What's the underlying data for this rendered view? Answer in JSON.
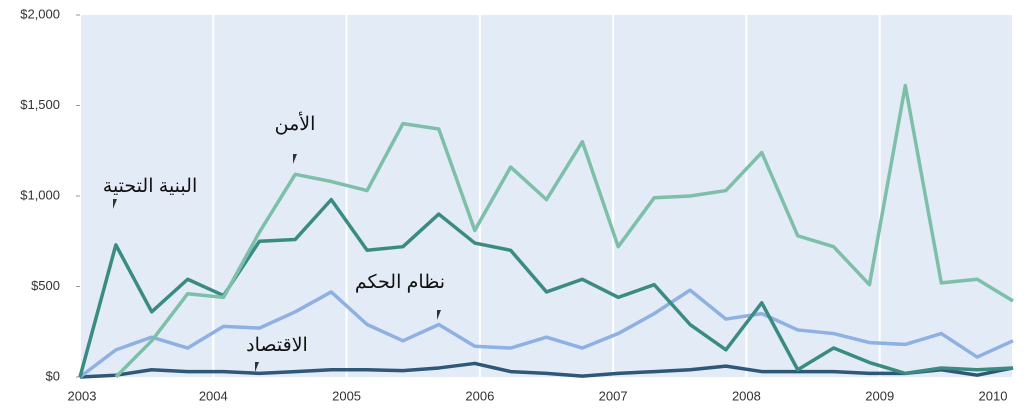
{
  "chart_data": {
    "type": "line",
    "x": [
      2003,
      2003.269,
      2003.538,
      2003.808,
      2004.077,
      2004.346,
      2004.615,
      2004.885,
      2005.154,
      2005.423,
      2005.692,
      2005.962,
      2006.231,
      2006.5,
      2006.769,
      2007.038,
      2007.308,
      2007.577,
      2007.846,
      2008.115,
      2008.385,
      2008.654,
      2008.923,
      2009.192,
      2009.462,
      2009.731,
      2010
    ],
    "series": [
      {
        "name": "الأمن",
        "color": "#7dbfa8",
        "values": [
          null,
          0,
          200,
          460,
          440,
          800,
          1120,
          1080,
          1030,
          1400,
          1370,
          810,
          1160,
          980,
          1300,
          720,
          990,
          1000,
          1030,
          1240,
          780,
          720,
          510,
          1610,
          520,
          540,
          420
        ]
      },
      {
        "name": "البنية التحتية",
        "color": "#3a8c82",
        "values": [
          0,
          730,
          360,
          540,
          450,
          750,
          760,
          980,
          700,
          720,
          900,
          740,
          700,
          470,
          540,
          440,
          510,
          290,
          150,
          410,
          40,
          160,
          80,
          20,
          50,
          40,
          50
        ]
      },
      {
        "name": "نظام الحكم",
        "color": "#8eb0e2",
        "values": [
          0,
          150,
          220,
          160,
          280,
          270,
          360,
          470,
          290,
          200,
          290,
          170,
          160,
          220,
          160,
          240,
          350,
          480,
          320,
          350,
          260,
          240,
          190,
          180,
          240,
          110,
          200
        ]
      },
      {
        "name": "الاقتصاد",
        "color": "#2f5878",
        "values": [
          0,
          10,
          40,
          30,
          30,
          20,
          30,
          40,
          40,
          35,
          50,
          75,
          30,
          20,
          5,
          20,
          30,
          40,
          60,
          30,
          30,
          30,
          20,
          20,
          40,
          10,
          50
        ]
      }
    ],
    "xlim": [
      2003,
      2010
    ],
    "xticks": [
      2003,
      2004,
      2005,
      2006,
      2007,
      2008,
      2009,
      2010
    ],
    "ylim": [
      0,
      2000
    ],
    "yticks": [
      {
        "value": 0,
        "label": "$0"
      },
      {
        "value": 500,
        "label": "$500"
      },
      {
        "value": 1000,
        "label": "$1,000"
      },
      {
        "value": 1500,
        "label": "$1,500"
      },
      {
        "value": 2000,
        "label": "$2,000"
      }
    ],
    "grid": "x"
  }
}
